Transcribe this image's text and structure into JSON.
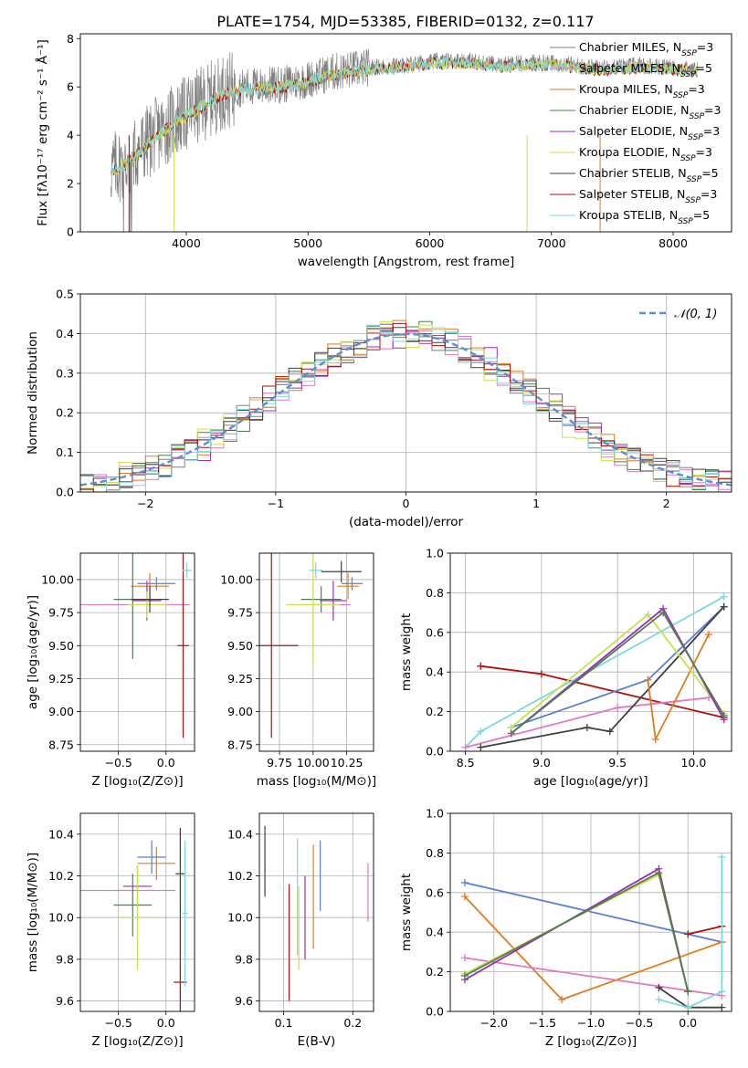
{
  "figure": {
    "title": "PLATE=1754, MJD=53385, FIBERID=0132, z=0.117"
  },
  "legend_spectrum": [
    "Chabrier MILES, Nₛₛₚ=3"
  ],
  "colors": {
    "Chabrier MILES": "#808080",
    "Salpeter MILES": "#e377c2",
    "Kroupa MILES": "#e07b20",
    "Chabrier ELODIE": "#4f7f4f",
    "Salpeter ELODIE": "#9b30b5",
    "Kroupa ELODIE": "#c8e050",
    "Chabrier STELIB": "#404040",
    "Salpeter STELIB": "#b01010",
    "Kroupa STELIB": "#7dd8e0",
    "Blue": "#5b7fd8",
    "Normal": "#5b8fd0"
  },
  "chart_data": [
    {
      "id": "spectrum",
      "type": "line",
      "xlabel": "wavelength [Angstrom, rest frame]",
      "ylabel": "Flux [fλ10⁻¹⁷ erg cm⁻² s⁻¹ Å⁻¹]",
      "xlim": [
        3130,
        8480
      ],
      "ylim": [
        0,
        8.2
      ],
      "xticks": [
        "4000",
        "5000",
        "6000",
        "7000",
        "8000"
      ],
      "yticks": [
        "0",
        "2",
        "4",
        "6",
        "8"
      ],
      "grid": false,
      "legend_position": "upper right",
      "series": [
        {
          "name": "Chabrier MILES, N_SSP=3"
        },
        {
          "name": "Salpeter MILES, N_SSP=5"
        },
        {
          "name": "Kroupa MILES, N_SSP=3"
        },
        {
          "name": "Chabrier ELODIE, N_SSP=3"
        },
        {
          "name": "Salpeter ELODIE, N_SSP=3"
        },
        {
          "name": "Kroupa ELODIE, N_SSP=3"
        },
        {
          "name": "Chabrier STELIB, N_SSP=5"
        },
        {
          "name": "Salpeter STELIB, N_SSP=3"
        },
        {
          "name": "Kroupa STELIB, N_SSP=5"
        }
      ],
      "legend": [
        {
          "pre": "Chabrier MILES, N",
          "sub": "SSP",
          "post": "=3",
          "color": "#808080"
        },
        {
          "pre": "Salpeter MILES, N",
          "sub": "SSP",
          "post": "=5",
          "color": "#e377c2"
        },
        {
          "pre": "Kroupa MILES, N",
          "sub": "SSP",
          "post": "=3",
          "color": "#e07b20"
        },
        {
          "pre": "Chabrier ELODIE, N",
          "sub": "SSP",
          "post": "=3",
          "color": "#4f7f4f"
        },
        {
          "pre": "Salpeter ELODIE, N",
          "sub": "SSP",
          "post": "=3",
          "color": "#9b30b5"
        },
        {
          "pre": "Kroupa ELODIE, N",
          "sub": "SSP",
          "post": "=3",
          "color": "#c8e050"
        },
        {
          "pre": "Chabrier STELIB, N",
          "sub": "SSP",
          "post": "=5",
          "color": "#404040"
        },
        {
          "pre": "Salpeter STELIB, N",
          "sub": "SSP",
          "post": "=3",
          "color": "#b01010"
        },
        {
          "pre": "Kroupa STELIB, N",
          "sub": "SSP",
          "post": "=5",
          "color": "#7dd8e0"
        }
      ],
      "continuum_points": [
        [
          3380,
          2.6
        ],
        [
          3500,
          2.85
        ],
        [
          3700,
          3.8
        ],
        [
          3900,
          4.6
        ],
        [
          4100,
          5.2
        ],
        [
          4300,
          5.8
        ],
        [
          4500,
          6.0
        ],
        [
          4800,
          6.1
        ],
        [
          5000,
          6.3
        ],
        [
          5200,
          6.6
        ],
        [
          5500,
          6.8
        ],
        [
          5800,
          6.9
        ],
        [
          6000,
          7.05
        ],
        [
          6300,
          7.1
        ],
        [
          6600,
          6.9
        ],
        [
          6800,
          7.0
        ],
        [
          7000,
          7.0
        ],
        [
          7200,
          6.9
        ],
        [
          7400,
          6.8
        ],
        [
          7700,
          6.9
        ],
        [
          8000,
          6.8
        ],
        [
          8200,
          6.7
        ]
      ]
    },
    {
      "id": "residuals",
      "type": "line",
      "xlabel": "(data-model)/error",
      "ylabel": "Normed distribution",
      "xlim": [
        -2.5,
        2.5
      ],
      "ylim": [
        0,
        0.5
      ],
      "xticks": [
        "−2",
        "−1",
        "0",
        "1",
        "2"
      ],
      "yticks": [
        "0.0",
        "0.1",
        "0.2",
        "0.3",
        "0.4",
        "0.5"
      ],
      "grid": true,
      "legend": [
        "𝒩(0, 1)"
      ],
      "legend_position": "upper right",
      "bin_width": 0.1
    },
    {
      "id": "age-vs-Z",
      "type": "scatter",
      "xlabel": "Z [log₁₀(Z/Z⊙)]",
      "ylabel": "age  [log₁₀(age/yr)]",
      "xlim": [
        -0.9,
        0.3
      ],
      "ylim": [
        8.7,
        10.2
      ],
      "xticks": [
        "−0.5",
        "0.0"
      ],
      "yticks": [
        "8.75",
        "9.00",
        "9.25",
        "9.50",
        "9.75",
        "10.00"
      ],
      "grid": true,
      "errorbars": [
        {
          "c": "Salpeter MILES",
          "x": -0.35,
          "xerr": 0.6,
          "y": 9.81,
          "yerr": 0.0
        },
        {
          "c": "Kroupa MILES",
          "x": -0.17,
          "xerr": 0.2,
          "y": 9.95,
          "yerr": 0.1
        },
        {
          "c": "Chabrier ELODIE",
          "x": -0.35,
          "xerr": 0.2,
          "y": 9.85,
          "yerr": 0.45
        },
        {
          "c": "Salpeter ELODIE",
          "x": -0.2,
          "xerr": 0.15,
          "y": 9.84,
          "yerr": 0.15
        },
        {
          "c": "Kroupa ELODIE",
          "x": -0.2,
          "xerr": 0.2,
          "y": 9.81,
          "yerr": 0.1
        },
        {
          "c": "Chabrier STELIB",
          "x": -0.17,
          "xerr": 0.2,
          "y": 9.85,
          "yerr": 0.1
        },
        {
          "c": "Salpeter STELIB",
          "x": 0.18,
          "xerr": 0.06,
          "y": 9.5,
          "yerr": 0.7
        },
        {
          "c": "Kroupa STELIB",
          "x": 0.22,
          "xerr": 0.05,
          "y": 10.07,
          "yerr": 0.06
        },
        {
          "c": "Blue",
          "x": -0.1,
          "xerr": 0.2,
          "y": 9.97,
          "yerr": 0.05
        }
      ]
    },
    {
      "id": "age-vs-mass",
      "type": "scatter",
      "xlabel": "mass [log₁₀(M/M⊙)]",
      "ylabel": "",
      "xlim": [
        9.6,
        10.45
      ],
      "ylim": [
        8.7,
        10.2
      ],
      "xticks": [
        "9.75",
        "10.00",
        "10.25"
      ],
      "yticks": [
        "8.75",
        "9.00",
        "9.25",
        "9.50",
        "9.75",
        "10.00"
      ],
      "grid": true,
      "errorbars": [
        {
          "c": "Salpeter MILES",
          "x": 10.13,
          "xerr": 0.15,
          "y": 9.81,
          "yerr": 0.0
        },
        {
          "c": "Kroupa MILES",
          "x": 10.26,
          "xerr": 0.08,
          "y": 9.95,
          "yerr": 0.1
        },
        {
          "c": "Chabrier ELODIE",
          "x": 10.06,
          "xerr": 0.15,
          "y": 9.85,
          "yerr": 0.1
        },
        {
          "c": "Salpeter ELODIE",
          "x": 10.15,
          "xerr": 0.1,
          "y": 9.84,
          "yerr": 0.15
        },
        {
          "c": "Kroupa ELODIE",
          "x": 10.0,
          "xerr": 0.2,
          "y": 9.81,
          "yerr": 0.45
        },
        {
          "c": "Chabrier STELIB",
          "x": 10.21,
          "xerr": 0.15,
          "y": 10.06,
          "yerr": 0.08
        },
        {
          "c": "Salpeter STELIB",
          "x": 9.69,
          "xerr": 0.2,
          "y": 9.5,
          "yerr": 0.7
        },
        {
          "c": "Kroupa STELIB",
          "x": 10.02,
          "xerr": 0.05,
          "y": 10.07,
          "yerr": 0.06
        },
        {
          "c": "Blue",
          "x": 10.29,
          "xerr": 0.08,
          "y": 9.97,
          "yerr": 0.05
        }
      ]
    },
    {
      "id": "mass-vs-Z",
      "type": "scatter",
      "xlabel": "Z [log₁₀(Z/Z⊙)]",
      "ylabel": "mass [log₁₀(M/M⊙)]",
      "xlim": [
        -0.9,
        0.3
      ],
      "ylim": [
        9.55,
        10.5
      ],
      "xticks": [
        "−0.5",
        "0.0"
      ],
      "yticks": [
        "9.6",
        "9.8",
        "10.0",
        "10.2",
        "10.4"
      ],
      "grid": true,
      "errorbars": [
        {
          "c": "Salpeter MILES",
          "x": -0.4,
          "xerr": 0.5,
          "y": 10.13,
          "yerr": 0.0
        },
        {
          "c": "Kroupa MILES",
          "x": -0.1,
          "xerr": 0.2,
          "y": 10.26,
          "yerr": 0.08
        },
        {
          "c": "Chabrier ELODIE",
          "x": -0.35,
          "xerr": 0.2,
          "y": 10.06,
          "yerr": 0.15
        },
        {
          "c": "Salpeter ELODIE",
          "x": -0.3,
          "xerr": 0.15,
          "y": 10.15,
          "yerr": 0.1
        },
        {
          "c": "Kroupa ELODIE",
          "x": -0.3,
          "xerr": 0.2,
          "y": 10.0,
          "yerr": 0.25
        },
        {
          "c": "Chabrier STELIB",
          "x": 0.15,
          "xerr": 0.05,
          "y": 10.21,
          "yerr": 0.22
        },
        {
          "c": "Salpeter STELIB",
          "x": 0.15,
          "xerr": 0.07,
          "y": 9.69,
          "yerr": 0.3
        },
        {
          "c": "Kroupa STELIB",
          "x": 0.2,
          "xerr": 0.03,
          "y": 10.02,
          "yerr": 0.35
        },
        {
          "c": "Blue",
          "x": -0.15,
          "xerr": 0.15,
          "y": 10.29,
          "yerr": 0.08
        }
      ]
    },
    {
      "id": "mass-vs-EBV",
      "type": "scatter",
      "xlabel": "E(B-V)",
      "ylabel": "",
      "xlim": [
        0.065,
        0.23
      ],
      "ylim": [
        9.55,
        10.5
      ],
      "xticks": [
        "0.1",
        "0.2"
      ],
      "yticks": [
        "9.6",
        "9.8",
        "10.0",
        "10.2",
        "10.4"
      ],
      "grid": true,
      "errorbars": [
        {
          "c": "Chabrier STELIB",
          "x": 0.073,
          "xerr": 0,
          "y": 10.27,
          "yerr": 0.17
        },
        {
          "c": "Salpeter STELIB",
          "x": 0.108,
          "xerr": 0,
          "y": 9.88,
          "yerr": 0.28
        },
        {
          "c": "Kroupa STELIB",
          "x": 0.12,
          "xerr": 0,
          "y": 10.1,
          "yerr": 0.28
        },
        {
          "c": "Kroupa ELODIE",
          "x": 0.122,
          "xerr": 0,
          "y": 9.95,
          "yerr": 0.2
        },
        {
          "c": "Salpeter ELODIE",
          "x": 0.131,
          "xerr": 0,
          "y": 10.0,
          "yerr": 0.2
        },
        {
          "c": "Kroupa MILES",
          "x": 0.143,
          "xerr": 0,
          "y": 10.1,
          "yerr": 0.25
        },
        {
          "c": "Blue",
          "x": 0.153,
          "xerr": 0,
          "y": 10.2,
          "yerr": 0.17
        },
        {
          "c": "Salpeter MILES",
          "x": 0.222,
          "xerr": 0,
          "y": 10.12,
          "yerr": 0.14
        }
      ]
    },
    {
      "id": "weight-vs-age",
      "type": "line",
      "xlabel": "age  [log₁₀(age/yr)]",
      "ylabel": "mass weight",
      "xlim": [
        8.4,
        10.25
      ],
      "ylim": [
        0,
        1.0
      ],
      "xticks": [
        "8.5",
        "9.0",
        "9.5",
        "10.0"
      ],
      "yticks": [
        "0.0",
        "0.2",
        "0.4",
        "0.6",
        "0.8",
        "1.0"
      ],
      "grid": true,
      "series": [
        {
          "c": "Salpeter STELIB",
          "x": [
            8.6,
            9.0,
            10.2
          ],
          "y": [
            0.43,
            0.39,
            0.17
          ]
        },
        {
          "c": "Kroupa STELIB",
          "x": [
            8.5,
            8.6,
            10.2
          ],
          "y": [
            0.02,
            0.1,
            0.78
          ]
        },
        {
          "c": "Blue",
          "x": [
            8.8,
            9.7,
            10.2
          ],
          "y": [
            0.12,
            0.36,
            0.73
          ]
        },
        {
          "c": "Salpeter MILES",
          "x": [
            8.5,
            9.5,
            10.1
          ],
          "y": [
            0.02,
            0.22,
            0.27
          ]
        },
        {
          "c": "Chabrier STELIB",
          "x": [
            8.6,
            9.3,
            9.45,
            10.2
          ],
          "y": [
            0.02,
            0.12,
            0.1,
            0.73
          ]
        },
        {
          "c": "Kroupa MILES",
          "x": [
            9.7,
            9.75,
            10.1
          ],
          "y": [
            0.36,
            0.06,
            0.59
          ]
        },
        {
          "c": "Kroupa ELODIE",
          "x": [
            8.8,
            9.7,
            10.2
          ],
          "y": [
            0.12,
            0.69,
            0.19
          ]
        },
        {
          "c": "Salpeter ELODIE",
          "x": [
            8.8,
            9.8,
            10.2
          ],
          "y": [
            0.09,
            0.72,
            0.16
          ]
        },
        {
          "c": "Chabrier ELODIE",
          "x": [
            8.8,
            9.8,
            10.2
          ],
          "y": [
            0.09,
            0.7,
            0.18
          ]
        }
      ]
    },
    {
      "id": "weight-vs-Z",
      "type": "line",
      "xlabel": "Z [log₁₀(Z/Z⊙)]",
      "ylabel": "mass weight",
      "xlim": [
        -2.45,
        0.45
      ],
      "ylim": [
        0,
        1.0
      ],
      "xticks": [
        "−2.0",
        "−1.5",
        "−1.0",
        "−0.5",
        "0.0"
      ],
      "yticks": [
        "0.0",
        "0.2",
        "0.4",
        "0.6",
        "0.8",
        "1.0"
      ],
      "grid": true,
      "series": [
        {
          "c": "Blue",
          "x": [
            -2.3,
            0.35
          ],
          "y": [
            0.65,
            0.35
          ]
        },
        {
          "c": "Kroupa MILES",
          "x": [
            -2.3,
            -1.3,
            0.35
          ],
          "y": [
            0.58,
            0.06,
            0.35
          ]
        },
        {
          "c": "Salpeter MILES",
          "x": [
            -2.3,
            0.35
          ],
          "y": [
            0.27,
            0.08
          ]
        },
        {
          "c": "Kroupa ELODIE",
          "x": [
            -2.3,
            -0.3,
            0.0
          ],
          "y": [
            0.19,
            0.69,
            0.1
          ]
        },
        {
          "c": "Salpeter ELODIE",
          "x": [
            -2.3,
            -0.3,
            0.0
          ],
          "y": [
            0.16,
            0.72,
            0.1
          ]
        },
        {
          "c": "Chabrier ELODIE",
          "x": [
            -2.3,
            -0.3,
            0.0
          ],
          "y": [
            0.18,
            0.7,
            0.1
          ]
        },
        {
          "c": "Salpeter STELIB",
          "x": [
            0.0,
            0.35
          ],
          "y": [
            0.39,
            0.43
          ]
        },
        {
          "c": "Chabrier STELIB",
          "x": [
            -0.3,
            0.0,
            0.35
          ],
          "y": [
            0.12,
            0.02,
            0.02
          ]
        },
        {
          "c": "Kroupa STELIB",
          "x": [
            -0.3,
            0.0,
            0.35,
            0.35
          ],
          "y": [
            0.06,
            0.02,
            0.1,
            0.78
          ]
        }
      ]
    }
  ]
}
